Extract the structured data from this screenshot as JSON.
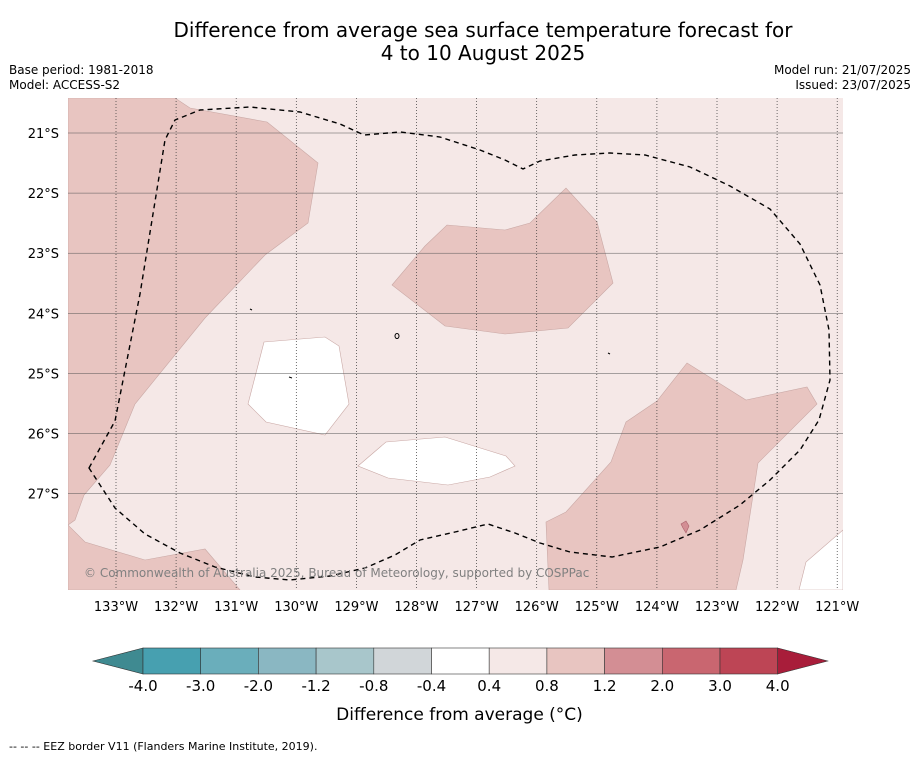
{
  "title_line1": "Difference from average sea surface temperature forecast for",
  "title_line2": "4 to 10 August 2025",
  "meta_left": [
    "Base period: 1981-2018",
    "Model: ACCESS-S2"
  ],
  "meta_right": [
    "Model run: 21/07/2025",
    "Issued: 23/07/2025"
  ],
  "map": {
    "lon_labels": [
      "133°W",
      "132°W",
      "131°W",
      "130°W",
      "129°W",
      "128°W",
      "127°W",
      "126°W",
      "125°W",
      "124°W",
      "123°W",
      "122°W",
      "121°W"
    ],
    "lat_labels": [
      "21°S",
      "22°S",
      "23°S",
      "24°S",
      "25°S",
      "26°S",
      "27°S"
    ],
    "copyright": "© Commonwealth of Australia 2025, Bureau of Meteorology, supported by COSPPac",
    "colors": {
      "0.4 to 0.8": "#f5e8e7",
      "0.8 to 1.2": "#e8c5c1",
      "-0.4 to 0.4": "#ffffff",
      "1.2 to 2.0": "#d38e94",
      "eez_border": "#000000"
    }
  },
  "colorbar": {
    "label": "Difference from average (°C)",
    "tick_labels": [
      "-4.0",
      "-3.0",
      "-2.0",
      "-1.2",
      "-0.8",
      "-0.4",
      "0.4",
      "0.8",
      "1.2",
      "2.0",
      "3.0",
      "4.0"
    ],
    "colors": [
      "#3f8a91",
      "#47a0b0",
      "#6aaebb",
      "#8ab7c2",
      "#a8c6cb",
      "#d1d6d9",
      "#ffffff",
      "#f5e8e7",
      "#e8c5c1",
      "#d38e94",
      "#c96670",
      "#bd4555",
      "#a81d3a"
    ]
  },
  "footnote": "--  --  -- EEZ border V11 (Flanders Marine Institute, 2019)."
}
